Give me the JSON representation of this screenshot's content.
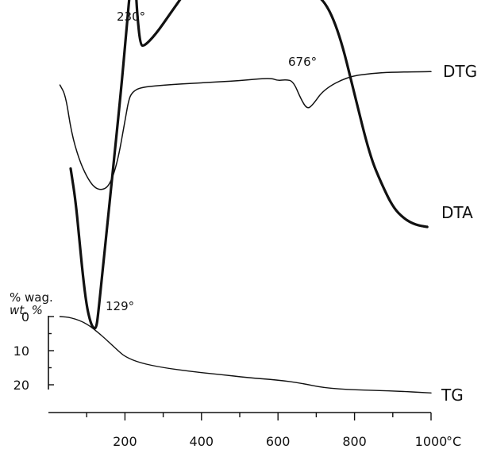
{
  "chart_data": {
    "type": "line",
    "title": "",
    "xlabel": "°C",
    "x_unit_label": "°C",
    "xlim": [
      0,
      1000
    ],
    "x_ticks": [
      {
        "value": 200,
        "label": "200"
      },
      {
        "value": 400,
        "label": "400"
      },
      {
        "value": 600,
        "label": "600"
      },
      {
        "value": 800,
        "label": "800"
      },
      {
        "value": 1000,
        "label": "1000"
      }
    ],
    "x_minor_ticks": [
      100,
      300,
      500,
      700,
      900
    ],
    "tg_axis": {
      "unit_line1": "% wag.",
      "unit_line2": "wt. %",
      "ylim": [
        0,
        25
      ],
      "inverted": true,
      "ticks": [
        {
          "value": 0,
          "label": "0"
        },
        {
          "value": 10,
          "label": "10"
        },
        {
          "value": 20,
          "label": "20"
        }
      ]
    },
    "series": [
      {
        "name": "TG",
        "kind": "mass_loss_percent",
        "points": [
          [
            30,
            0.0
          ],
          [
            60,
            0.3
          ],
          [
            100,
            2.0
          ],
          [
            140,
            5.6
          ],
          [
            180,
            9.8
          ],
          [
            200,
            11.8
          ],
          [
            240,
            13.6
          ],
          [
            300,
            15.0
          ],
          [
            380,
            16.2
          ],
          [
            450,
            17.0
          ],
          [
            520,
            17.9
          ],
          [
            600,
            18.6
          ],
          [
            660,
            19.5
          ],
          [
            720,
            20.9
          ],
          [
            800,
            21.5
          ],
          [
            900,
            21.8
          ],
          [
            1000,
            22.4
          ]
        ]
      },
      {
        "name": "DTA",
        "kind": "relative_signal",
        "points": [
          [
            58,
            30.3
          ],
          [
            70,
            37.6
          ],
          [
            80,
            47.4
          ],
          [
            90,
            57.3
          ],
          [
            100,
            65.0
          ],
          [
            110,
            69.1
          ],
          [
            118,
            70.6
          ],
          [
            125,
            70.5
          ],
          [
            130,
            66.9
          ],
          [
            140,
            57.5
          ],
          [
            160,
            38.9
          ],
          [
            190,
            10.5
          ],
          [
            205,
            -6.0
          ],
          [
            215,
            -16.3
          ],
          [
            222,
            -19.5
          ],
          [
            227,
            -17.5
          ],
          [
            232,
            -8.5
          ],
          [
            240,
            -1.0
          ],
          [
            250,
            -0.5
          ],
          [
            280,
            -3.5
          ],
          [
            320,
            -9.0
          ],
          [
            360,
            -14.5
          ],
          [
            390,
            -18.0
          ],
          [
            420,
            -19.5
          ],
          [
            470,
            -20.5
          ],
          [
            520,
            -20.3
          ],
          [
            560,
            -19.0
          ],
          [
            600,
            -17.0
          ],
          [
            640,
            -16.0
          ],
          [
            680,
            -14.0
          ],
          [
            720,
            -12.5
          ],
          [
            760,
            -4.0
          ],
          [
            800,
            11.5
          ],
          [
            840,
            27.0
          ],
          [
            870,
            34.0
          ],
          [
            900,
            40.0
          ],
          [
            930,
            43.0
          ],
          [
            960,
            44.5
          ],
          [
            990,
            45.0
          ]
        ]
      },
      {
        "name": "DTG",
        "kind": "relative_signal",
        "points": [
          [
            30,
            -0.3
          ],
          [
            45,
            4.0
          ],
          [
            60,
            19.0
          ],
          [
            80,
            30.0
          ],
          [
            100,
            37.0
          ],
          [
            120,
            41.5
          ],
          [
            140,
            42.5
          ],
          [
            160,
            40.5
          ],
          [
            180,
            31.5
          ],
          [
            200,
            14.5
          ],
          [
            210,
            5.5
          ],
          [
            220,
            2.5
          ],
          [
            240,
            0.7
          ],
          [
            300,
            -0.2
          ],
          [
            400,
            -1.2
          ],
          [
            500,
            -2.0
          ],
          [
            580,
            -3.2
          ],
          [
            600,
            -2.0
          ],
          [
            620,
            -2.5
          ],
          [
            640,
            -1.8
          ],
          [
            660,
            5.5
          ],
          [
            676,
            9.5
          ],
          [
            690,
            8.0
          ],
          [
            720,
            1.5
          ],
          [
            780,
            -3.5
          ],
          [
            840,
            -5.0
          ],
          [
            900,
            -5.5
          ],
          [
            1000,
            -5.7
          ]
        ]
      }
    ],
    "annotations": [
      {
        "text": "230°",
        "series": "DTA",
        "x": 230
      },
      {
        "text": "129°",
        "series": "DTA",
        "x": 129
      },
      {
        "text": "676°",
        "series": "DTG",
        "x": 676
      }
    ]
  }
}
